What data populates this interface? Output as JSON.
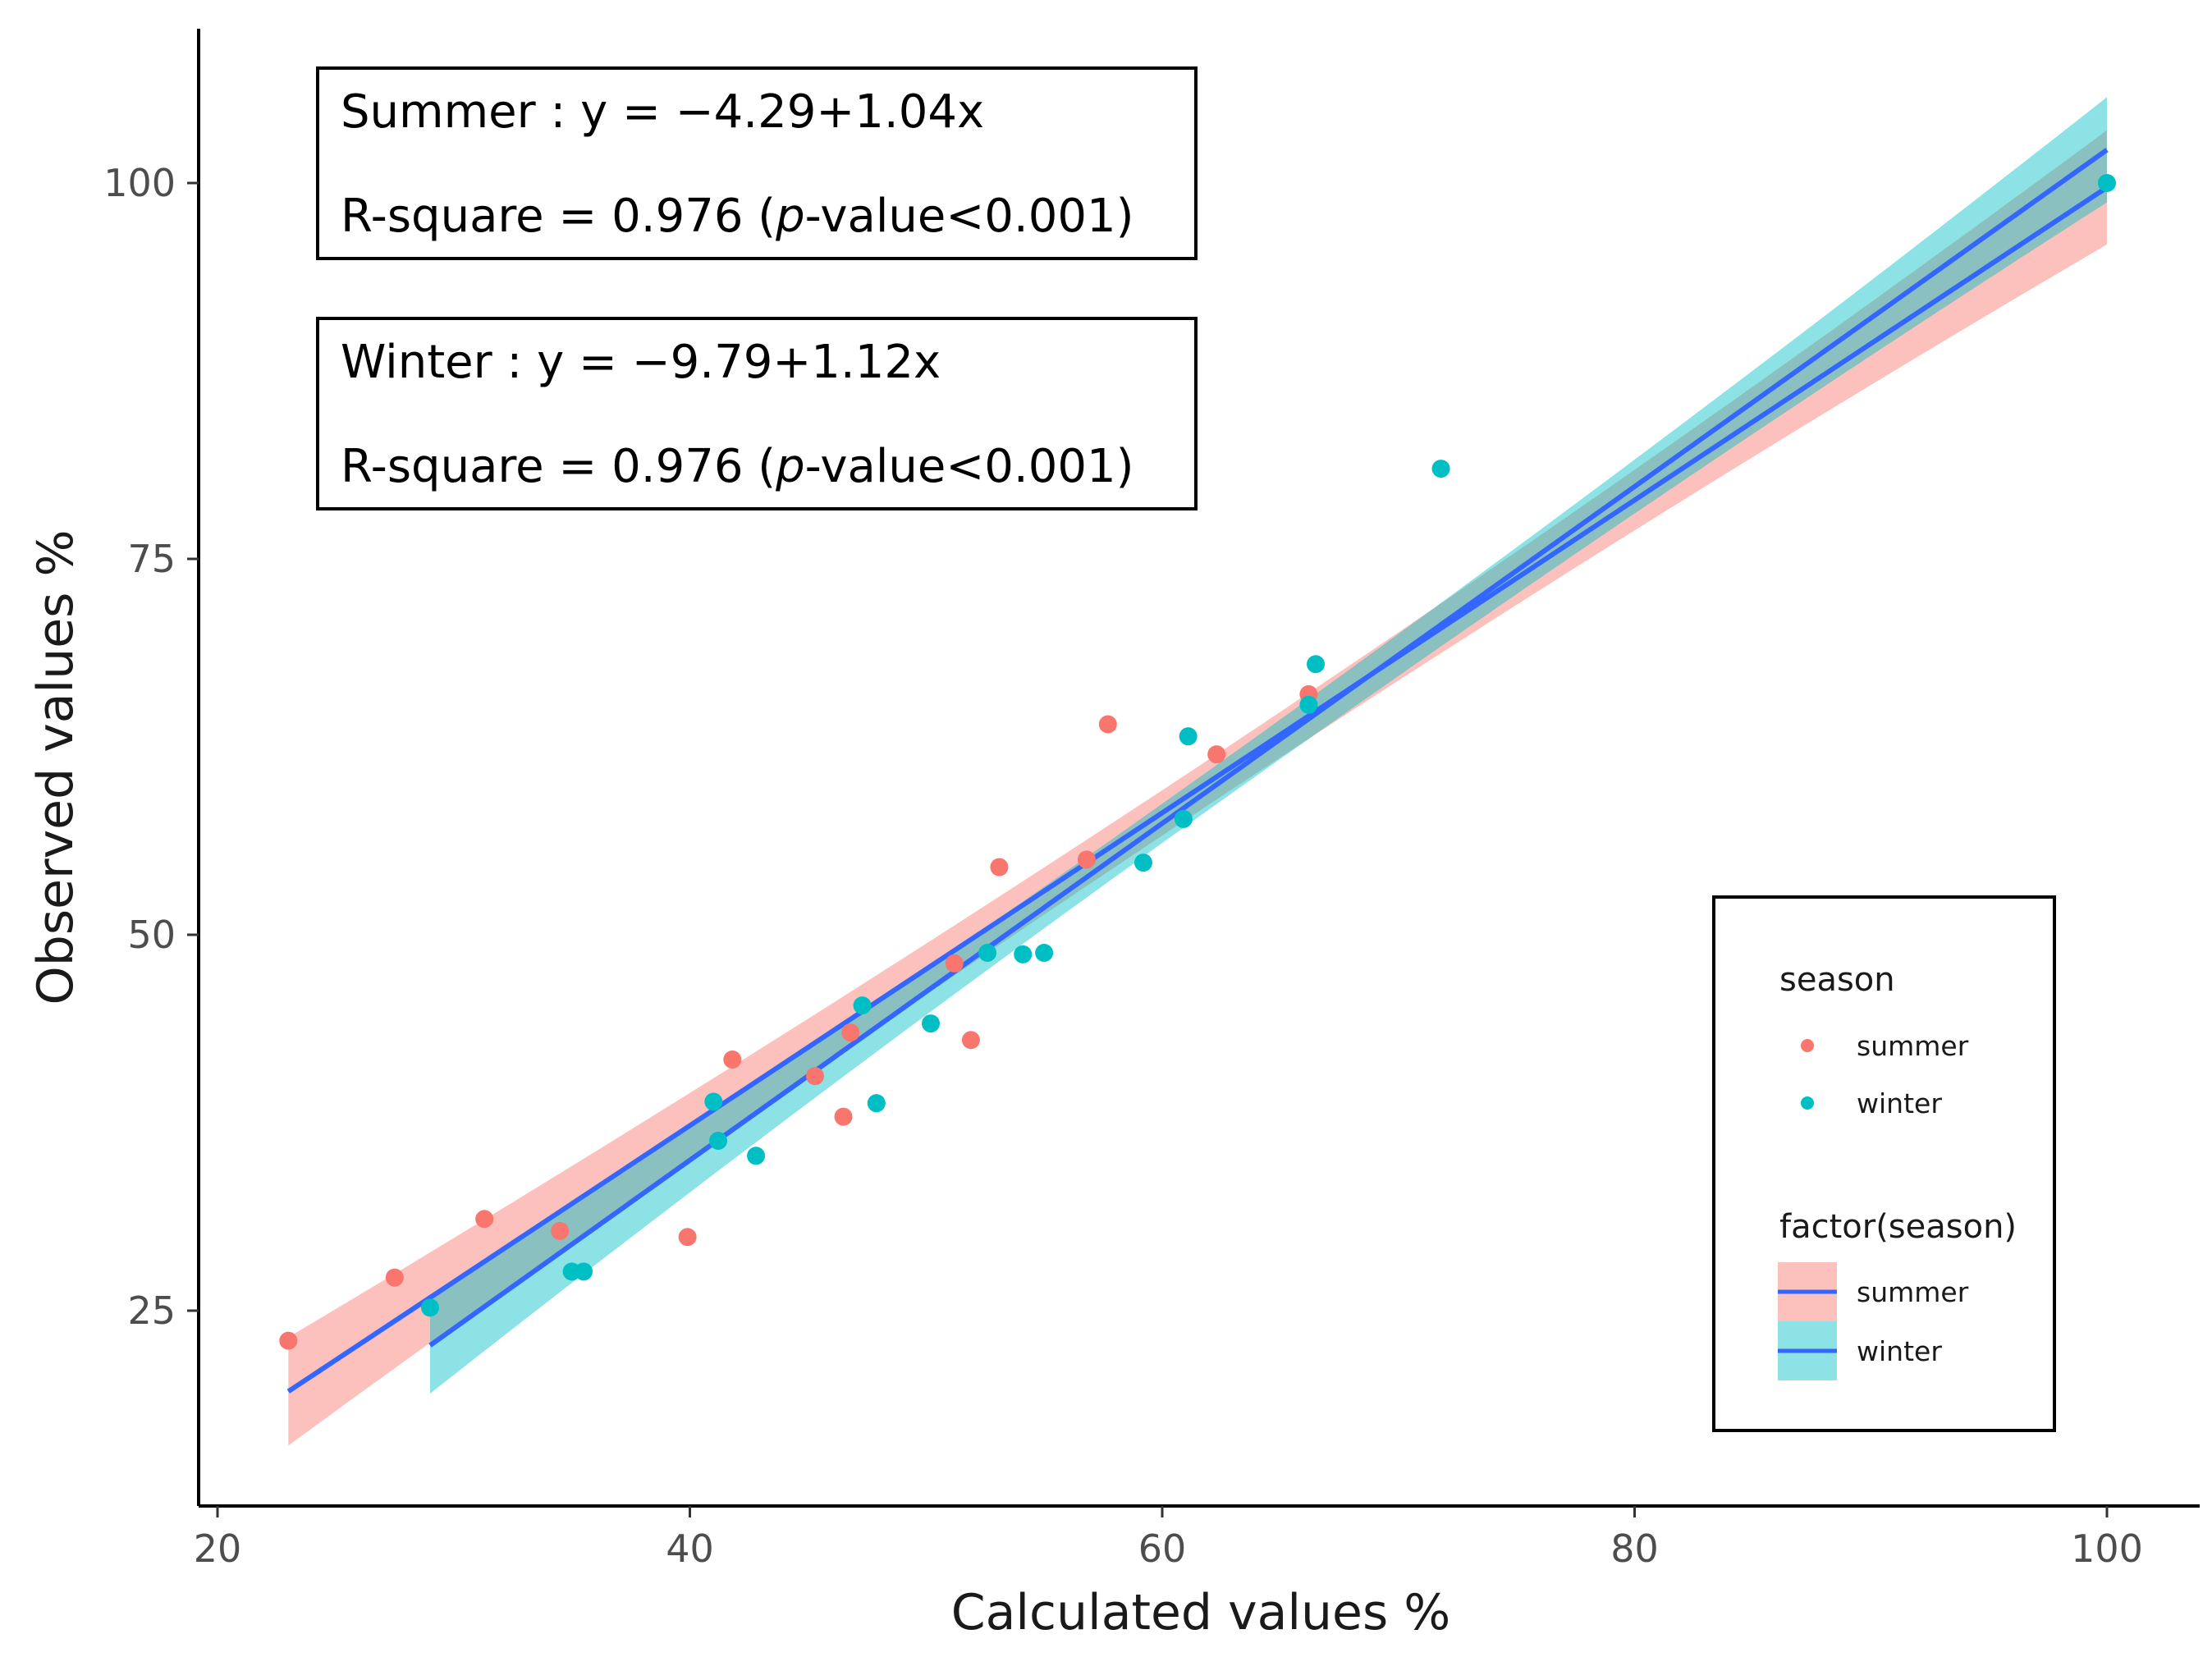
{
  "chart_data": {
    "type": "scatter",
    "xlabel": "Calculated values %",
    "ylabel": "Observed values %",
    "xlim": [
      19,
      101
    ],
    "ylim": [
      13,
      110
    ],
    "x_ticks": [
      20,
      40,
      60,
      80,
      100
    ],
    "y_ticks": [
      25,
      50,
      75,
      100
    ],
    "x_tick_labels": [
      "20",
      "40",
      "60",
      "80",
      "100"
    ],
    "y_tick_labels": [
      "25",
      "50",
      "75",
      "100"
    ],
    "grid": false,
    "series": [
      {
        "name": "summer",
        "color": "#F8766D",
        "band_color": "#F8766D",
        "x": [
          23,
          27.5,
          31.3,
          34.5,
          39.9,
          41.8,
          45.3,
          46.5,
          46.8,
          51.2,
          51.9,
          53.1,
          56.8,
          57.7,
          62.3,
          66.2
        ],
        "y": [
          23,
          27.2,
          31.1,
          30.3,
          29.9,
          41.7,
          40.6,
          37.9,
          43.5,
          48.1,
          43.0,
          54.5,
          55.0,
          64.0,
          62.0,
          66.0
        ],
        "fit": {
          "intercept": -4.29,
          "slope": 1.04,
          "x_range": [
            23,
            100
          ]
        },
        "ci_halfwidth": [
          3.6,
          1.5,
          3.8
        ]
      },
      {
        "name": "winter",
        "color": "#00BFC4",
        "band_color": "#00BFC4",
        "x": [
          29,
          35,
          35.5,
          41,
          41.2,
          42.8,
          47.3,
          47.9,
          50.2,
          52.6,
          54.1,
          55.0,
          59.2,
          60.9,
          61.1,
          66.2,
          66.5,
          71.8,
          100
        ],
        "y": [
          25.2,
          27.6,
          27.6,
          38.9,
          36.3,
          35.3,
          45.3,
          38.8,
          44.1,
          48.8,
          48.7,
          48.8,
          54.8,
          57.7,
          63.2,
          65.3,
          68.0,
          81.0,
          100
        ],
        "fit": {
          "intercept": -9.79,
          "slope": 1.12,
          "x_range": [
            29,
            100
          ]
        },
        "ci_halfwidth": [
          3.2,
          1.3,
          3.5
        ]
      }
    ],
    "annotations": [
      {
        "equation": "Summer : y = −4.29+1.04x",
        "r2_prefix": "R-square = 0.976 (",
        "p_italic": "p",
        "r2_suffix": "-value<0.001)"
      },
      {
        "equation": "Winter : y = −9.79+1.12x",
        "r2_prefix": "R-square = 0.976 (",
        "p_italic": "p",
        "r2_suffix": "-value<0.001)"
      }
    ],
    "legend": {
      "placement": "bottom-right",
      "points_title": "season",
      "points_items": [
        "summer",
        "winter"
      ],
      "fit_title": "factor(season)",
      "fit_items": [
        "summer",
        "winter"
      ],
      "line_color": "#3366FF"
    }
  }
}
